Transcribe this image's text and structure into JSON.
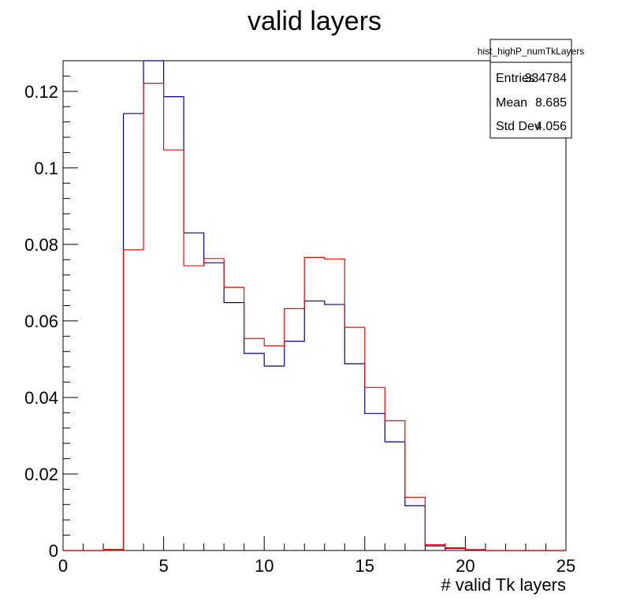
{
  "chart_data": {
    "type": "histogram",
    "title": "valid layers",
    "xlabel": "# valid Tk layers",
    "ylabel": "",
    "xlim": [
      0,
      25
    ],
    "ylim": [
      0,
      0.128
    ],
    "bin_edges": [
      0,
      1,
      2,
      3,
      4,
      5,
      6,
      7,
      8,
      9,
      10,
      11,
      12,
      13,
      14,
      15,
      16,
      17,
      18,
      19,
      20,
      21,
      22,
      23,
      24,
      25
    ],
    "x_ticks": [
      {
        "value": 0,
        "label": "0"
      },
      {
        "value": 5,
        "label": "5"
      },
      {
        "value": 10,
        "label": "10"
      },
      {
        "value": 15,
        "label": "15"
      },
      {
        "value": 20,
        "label": "20"
      },
      {
        "value": 25,
        "label": "25"
      }
    ],
    "y_ticks": [
      {
        "value": 0,
        "label": "0"
      },
      {
        "value": 0.02,
        "label": "0.02"
      },
      {
        "value": 0.04,
        "label": "0.04"
      },
      {
        "value": 0.06,
        "label": "0.06"
      },
      {
        "value": 0.08,
        "label": "0.08"
      },
      {
        "value": 0.1,
        "label": "0.1"
      },
      {
        "value": 0.12,
        "label": "0.12"
      }
    ],
    "series": [
      {
        "name": "blue",
        "color": "#000099",
        "values": [
          0,
          0,
          0.0003,
          0.1142,
          0.1285,
          0.1186,
          0.083,
          0.0752,
          0.0648,
          0.0515,
          0.0482,
          0.0547,
          0.0652,
          0.0643,
          0.0488,
          0.0358,
          0.0284,
          0.0117,
          0.0012,
          0.0005,
          0.0002,
          0,
          0,
          0,
          0
        ]
      },
      {
        "name": "red",
        "color": "#ff0000",
        "values": [
          0,
          0,
          0.0003,
          0.0786,
          0.1221,
          0.1047,
          0.0744,
          0.0763,
          0.0688,
          0.0554,
          0.0535,
          0.0632,
          0.0766,
          0.0762,
          0.0583,
          0.0426,
          0.0339,
          0.0139,
          0.0015,
          0.0007,
          0.0002,
          0,
          0,
          0,
          0
        ]
      }
    ],
    "stats_box": {
      "title": "hist_highP_numTkLayers",
      "rows": [
        {
          "label": "Entries",
          "value": "334784"
        },
        {
          "label": "Mean",
          "value": "8.685"
        },
        {
          "label": "Std Dev",
          "value": "4.056"
        }
      ]
    }
  }
}
